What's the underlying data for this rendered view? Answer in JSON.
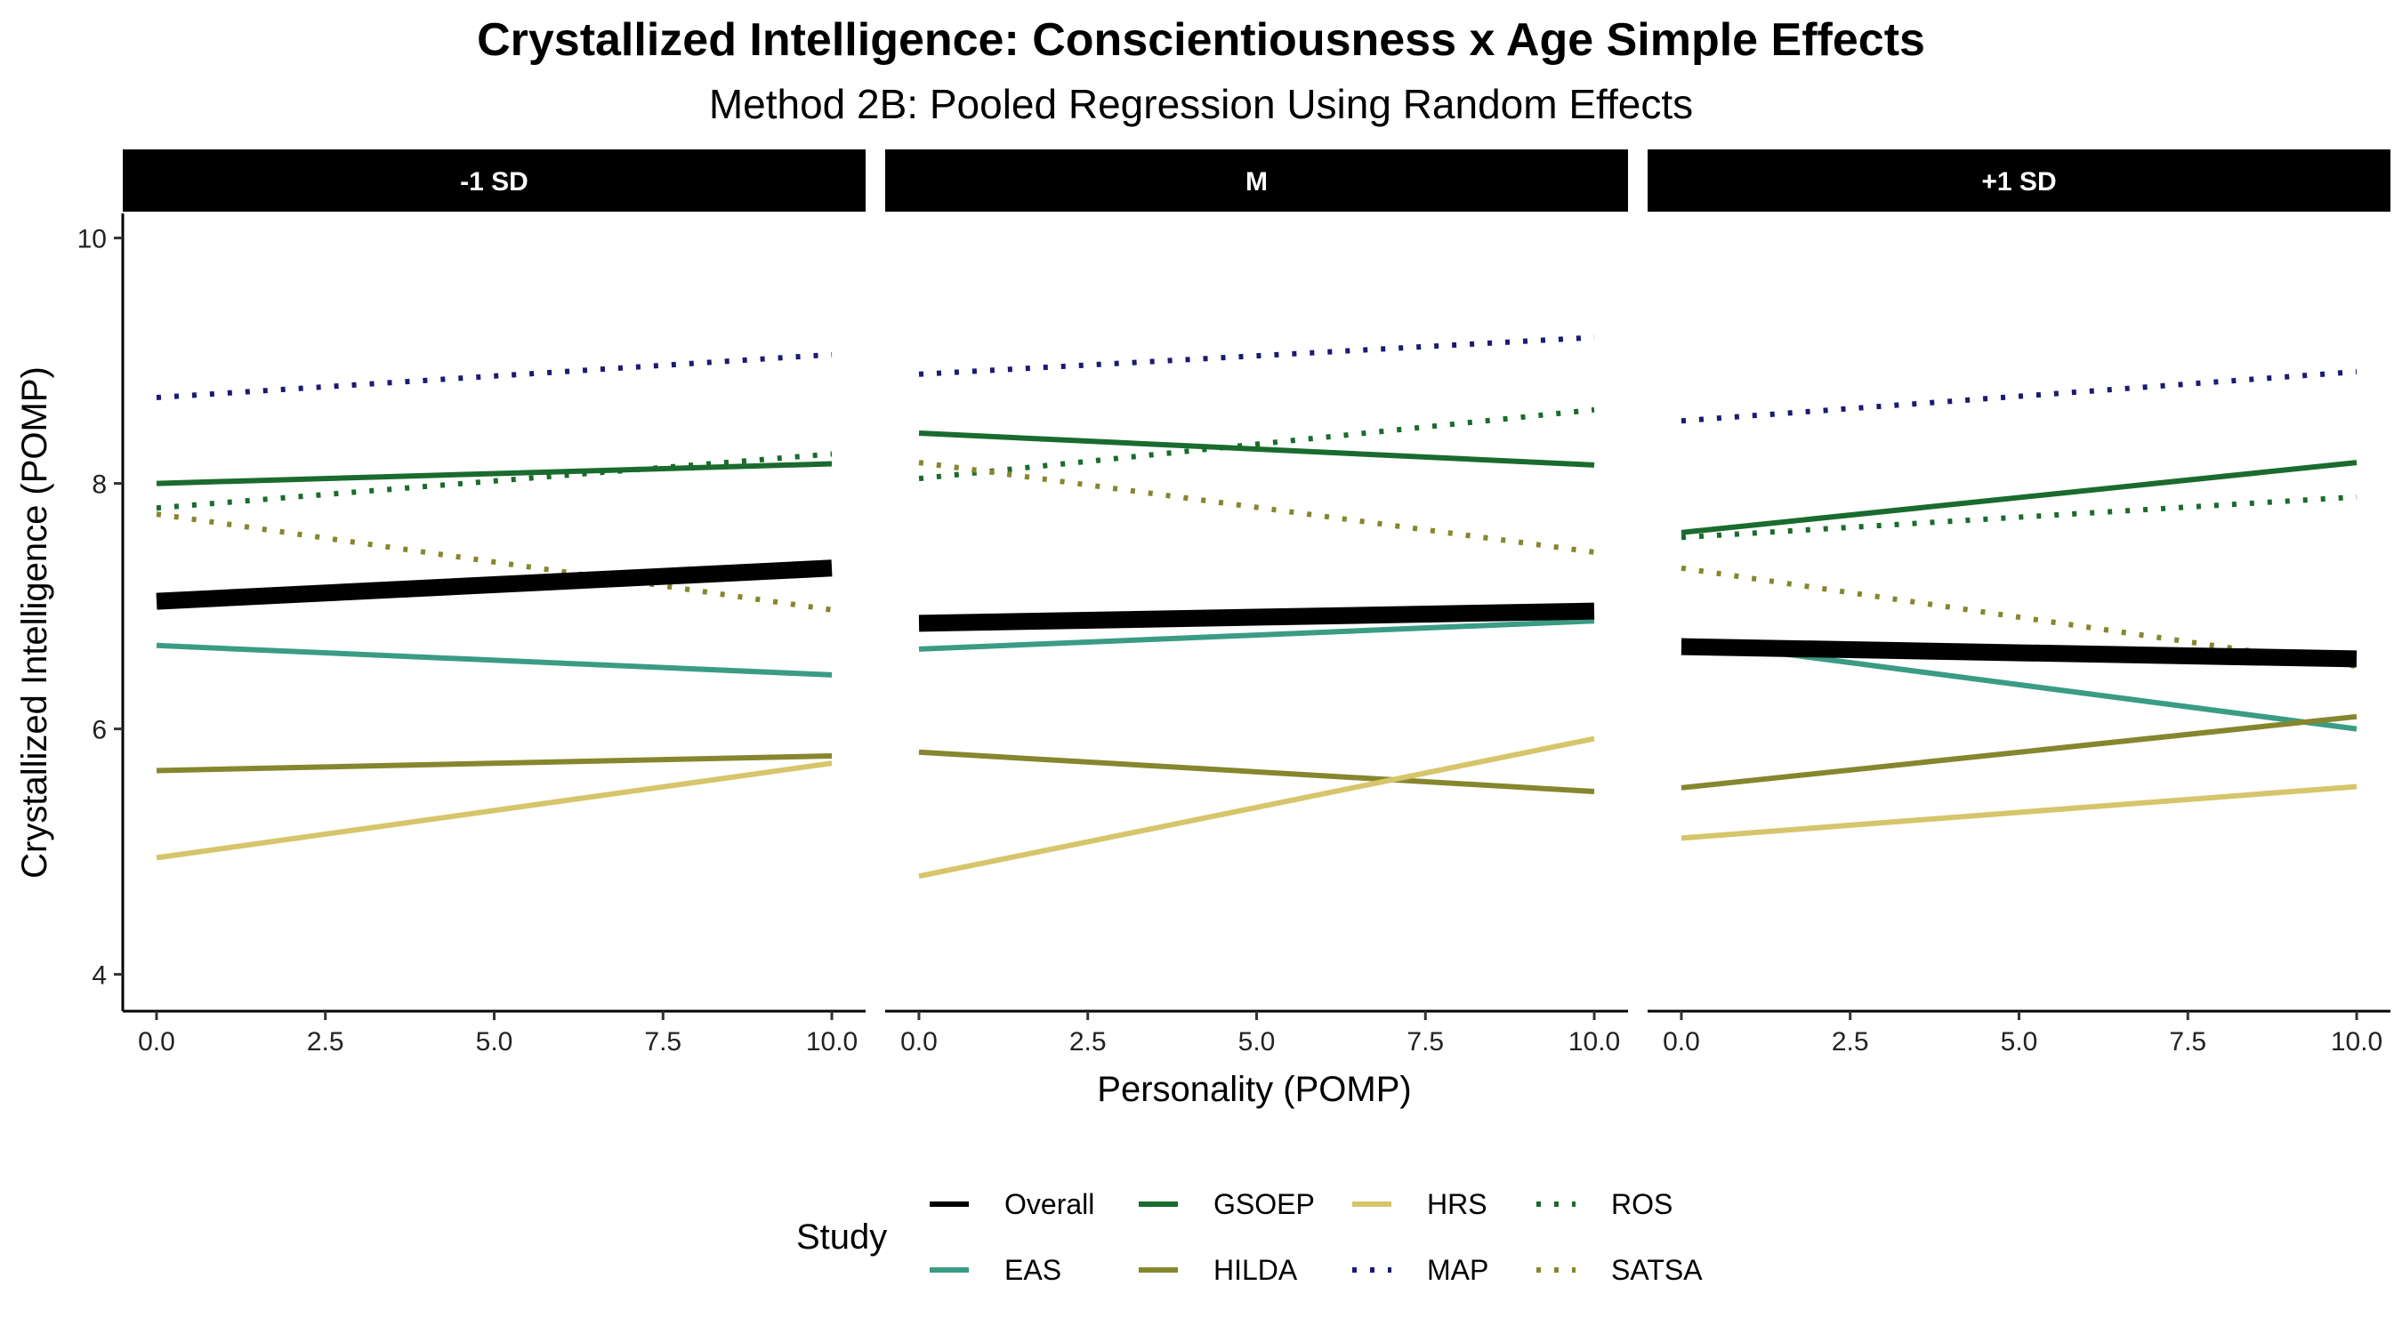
{
  "chart_data": {
    "type": "line",
    "title": "Crystallized Intelligence: Conscientiousness x Age Simple Effects",
    "subtitle": "Method 2B: Pooled Regression Using Random Effects",
    "xlabel": "Personality (POMP)",
    "ylabel": "Crystallized Intelligence (POMP)",
    "xlim": [
      -0.5,
      10.5
    ],
    "ylim": [
      3.7,
      10.2
    ],
    "x_ticks": [
      0,
      2.5,
      5,
      7.5,
      10
    ],
    "x_tick_labels": [
      "0.0",
      "2.5",
      "5.0",
      "7.5",
      "10.0"
    ],
    "y_ticks": [
      4,
      6,
      8,
      10
    ],
    "y_tick_labels": [
      "4",
      "6",
      "8",
      "10"
    ],
    "grid": false,
    "legend": {
      "title": "Study",
      "placement": "bottom",
      "entries": [
        {
          "name": "Overall",
          "color": "#000000",
          "linetype": "solid"
        },
        {
          "name": "EAS",
          "color": "#3a9c84",
          "linetype": "solid"
        },
        {
          "name": "GSOEP",
          "color": "#1a6b2e",
          "linetype": "solid"
        },
        {
          "name": "HILDA",
          "color": "#86862e",
          "linetype": "solid"
        },
        {
          "name": "HRS",
          "color": "#d6c56a",
          "linetype": "solid"
        },
        {
          "name": "MAP",
          "color": "#1c1a72",
          "linetype": "dotted"
        },
        {
          "name": "ROS",
          "color": "#1a6b2e",
          "linetype": "dotted"
        },
        {
          "name": "SATSA",
          "color": "#86862e",
          "linetype": "dotted"
        }
      ]
    },
    "panels": [
      {
        "label": "-1 SD",
        "series": [
          {
            "name": "Overall",
            "x": [
              0,
              10
            ],
            "y": [
              7.04,
              7.31
            ]
          },
          {
            "name": "EAS",
            "x": [
              0,
              10
            ],
            "y": [
              6.68,
              6.44
            ]
          },
          {
            "name": "GSOEP",
            "x": [
              0,
              10
            ],
            "y": [
              8.0,
              8.16
            ]
          },
          {
            "name": "HILDA",
            "x": [
              0,
              10
            ],
            "y": [
              5.66,
              5.78
            ]
          },
          {
            "name": "HRS",
            "x": [
              0,
              10
            ],
            "y": [
              4.95,
              5.72
            ]
          },
          {
            "name": "MAP",
            "x": [
              0,
              10
            ],
            "y": [
              8.7,
              9.05
            ]
          },
          {
            "name": "ROS",
            "x": [
              0,
              10
            ],
            "y": [
              7.8,
              8.24
            ]
          },
          {
            "name": "SATSA",
            "x": [
              0,
              10
            ],
            "y": [
              7.75,
              6.97
            ]
          }
        ]
      },
      {
        "label": "M",
        "series": [
          {
            "name": "Overall",
            "x": [
              0,
              10
            ],
            "y": [
              6.86,
              6.96
            ]
          },
          {
            "name": "EAS",
            "x": [
              0,
              10
            ],
            "y": [
              6.65,
              6.88
            ]
          },
          {
            "name": "GSOEP",
            "x": [
              0,
              10
            ],
            "y": [
              8.41,
              8.15
            ]
          },
          {
            "name": "HILDA",
            "x": [
              0,
              10
            ],
            "y": [
              5.81,
              5.49
            ]
          },
          {
            "name": "HRS",
            "x": [
              0,
              10
            ],
            "y": [
              4.8,
              5.92
            ]
          },
          {
            "name": "MAP",
            "x": [
              0,
              10
            ],
            "y": [
              8.89,
              9.19
            ]
          },
          {
            "name": "ROS",
            "x": [
              0,
              10
            ],
            "y": [
              8.04,
              8.6
            ]
          },
          {
            "name": "SATSA",
            "x": [
              0,
              10
            ],
            "y": [
              8.17,
              7.44
            ]
          }
        ]
      },
      {
        "label": "+1 SD",
        "series": [
          {
            "name": "Overall",
            "x": [
              0,
              10
            ],
            "y": [
              6.67,
              6.57
            ]
          },
          {
            "name": "EAS",
            "x": [
              0,
              10
            ],
            "y": [
              6.72,
              6.0
            ]
          },
          {
            "name": "GSOEP",
            "x": [
              0,
              10
            ],
            "y": [
              7.6,
              8.17
            ]
          },
          {
            "name": "HILDA",
            "x": [
              0,
              10
            ],
            "y": [
              5.52,
              6.1
            ]
          },
          {
            "name": "HRS",
            "x": [
              0,
              10
            ],
            "y": [
              5.11,
              5.53
            ]
          },
          {
            "name": "MAP",
            "x": [
              0,
              10
            ],
            "y": [
              8.51,
              8.91
            ]
          },
          {
            "name": "ROS",
            "x": [
              0,
              10
            ],
            "y": [
              7.56,
              7.89
            ]
          },
          {
            "name": "SATSA",
            "x": [
              0,
              10
            ],
            "y": [
              7.31,
              6.51
            ]
          }
        ]
      }
    ]
  }
}
